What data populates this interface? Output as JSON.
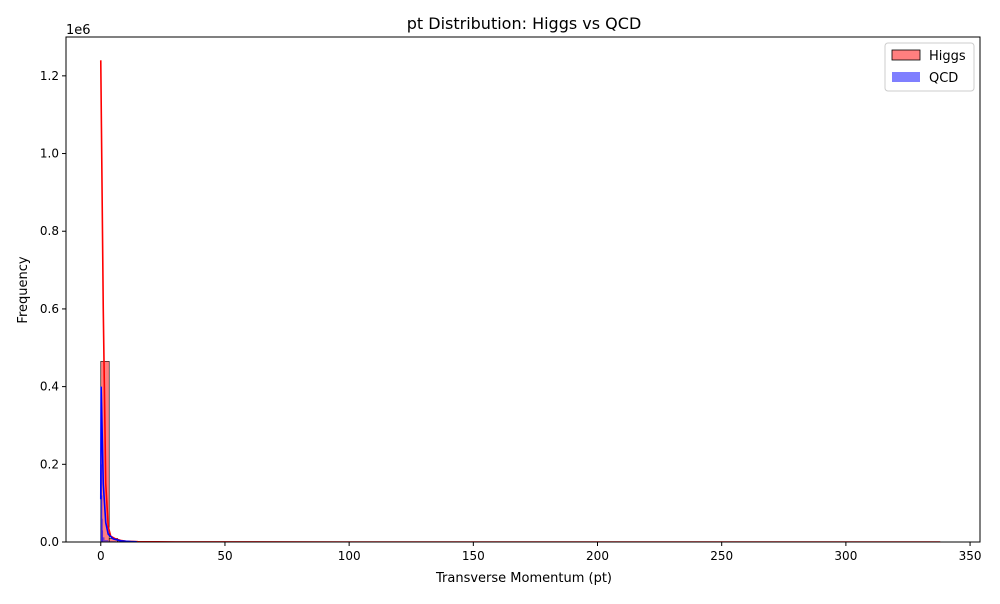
{
  "chart_data": {
    "type": "bar",
    "title": "pt Distribution: Higgs vs QCD",
    "xlabel": "Transverse Momentum (pt)",
    "ylabel": "Frequency",
    "y_offset_label": "1e6",
    "xlim": [
      -14,
      354
    ],
    "ylim": [
      0,
      1300000
    ],
    "x_ticks": [
      0,
      50,
      100,
      150,
      200,
      250,
      300,
      350
    ],
    "y_ticks": [
      0,
      200000,
      400000,
      600000,
      800000,
      1000000,
      1200000
    ],
    "y_tick_labels": [
      "0.0",
      "0.2",
      "0.4",
      "0.6",
      "0.8",
      "1.0",
      "1.2"
    ],
    "grid": false,
    "legend_position": "top-right",
    "series": [
      {
        "name": "Higgs",
        "color": "#ff0000",
        "fill_alpha": 0.5,
        "histogram": [
          {
            "x0": 0.0,
            "x1": 3.4,
            "count": 465000
          },
          {
            "x0": 3.4,
            "x1": 6.8,
            "count": 9000
          },
          {
            "x0": 6.8,
            "x1": 10.2,
            "count": 3000
          },
          {
            "x0": 10.2,
            "x1": 13.6,
            "count": 1000
          }
        ],
        "kde": [
          [
            0,
            1240000
          ],
          [
            1,
            600000
          ],
          [
            2,
            150000
          ],
          [
            3,
            40000
          ],
          [
            4,
            15000
          ],
          [
            6,
            8000
          ],
          [
            8,
            4000
          ],
          [
            10,
            2000
          ],
          [
            15,
            800
          ],
          [
            30,
            200
          ],
          [
            100,
            0
          ],
          [
            200,
            0
          ],
          [
            338,
            0
          ]
        ]
      },
      {
        "name": "QCD",
        "color": "#0000ff",
        "fill_alpha": 0.5,
        "histogram": [
          {
            "x0": 0.0,
            "x1": 0.15,
            "count": 400000
          },
          {
            "x0": 0.15,
            "x1": 0.3,
            "count": 200000
          },
          {
            "x0": 0.3,
            "x1": 0.45,
            "count": 120000
          },
          {
            "x0": 0.45,
            "x1": 0.6,
            "count": 60000
          },
          {
            "x0": 0.6,
            "x1": 0.75,
            "count": 30000
          },
          {
            "x0": 0.75,
            "x1": 1.5,
            "count": 12000
          },
          {
            "x0": 1.5,
            "x1": 3.0,
            "count": 5000
          },
          {
            "x0": 3.0,
            "x1": 6.0,
            "count": 2000
          },
          {
            "x0": 6.0,
            "x1": 14.5,
            "count": 500
          }
        ],
        "kde": [
          [
            0,
            110000
          ],
          [
            0.15,
            400000
          ],
          [
            0.5,
            300000
          ],
          [
            1,
            150000
          ],
          [
            2,
            50000
          ],
          [
            3,
            20000
          ],
          [
            5,
            8000
          ],
          [
            8,
            3000
          ],
          [
            12,
            1000
          ],
          [
            14.5,
            500
          ]
        ]
      }
    ]
  }
}
